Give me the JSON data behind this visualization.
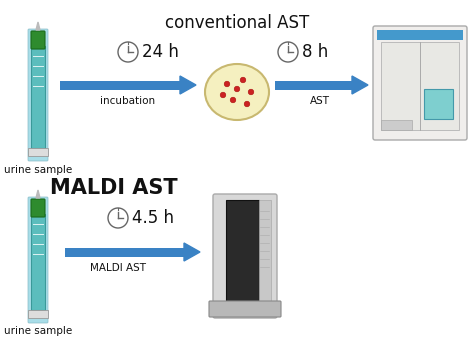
{
  "title_top": "conventional AST",
  "title_bottom": "MALDI AST",
  "label_urine1": "urine sample",
  "label_urine2": "urine sample",
  "label_incubation": "incubation",
  "label_ast": "AST",
  "label_maldi_ast": "MALDI AST",
  "time_24h": "24 h",
  "time_8h": "8 h",
  "time_45h": "4.5 h",
  "arrow_color": "#3a82c4",
  "bg_color": "#ffffff",
  "text_color": "#111111",
  "petri_fill": "#f5f0c0",
  "petri_edge": "#c8b870",
  "colony_color": "#cc2222",
  "clock_color": "#666666",
  "syringe_body": "#5bbdbd",
  "syringe_cap": "#2e8b2e",
  "syringe_edge": "#3a9999"
}
